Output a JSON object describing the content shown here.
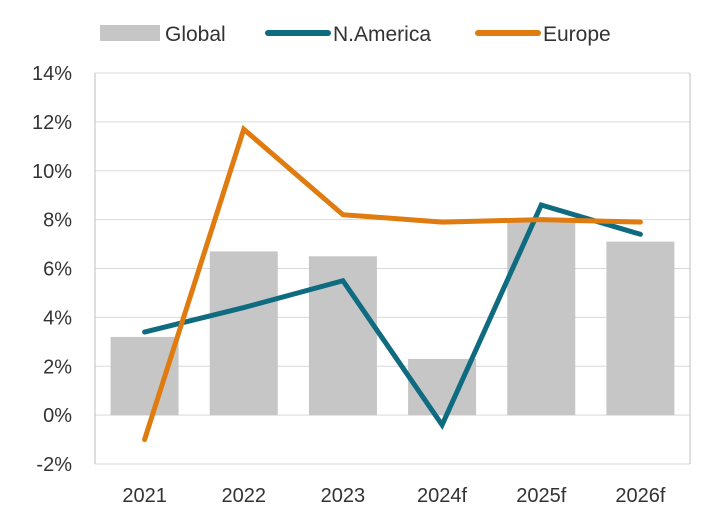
{
  "chart_data": {
    "type": "bar+line",
    "title": "",
    "xlabel": "",
    "ylabel": "",
    "categories": [
      "2021",
      "2022",
      "2023",
      "2024f",
      "2025f",
      "2026f"
    ],
    "ylim": [
      -2,
      14
    ],
    "yticks": [
      -2,
      0,
      2,
      4,
      6,
      8,
      10,
      12,
      14
    ],
    "y_tick_labels": [
      "-2%",
      "0%",
      "2%",
      "4%",
      "6%",
      "8%",
      "10%",
      "12%",
      "14%"
    ],
    "grid": true,
    "legend_position": "top",
    "series": [
      {
        "name": "Global",
        "kind": "bar",
        "color": "#c6c6c6",
        "values": [
          3.2,
          6.7,
          6.5,
          2.3,
          7.9,
          7.1
        ]
      },
      {
        "name": "N.America",
        "kind": "line",
        "color": "#0e6b80",
        "values": [
          3.4,
          4.4,
          5.5,
          -0.4,
          8.6,
          7.4
        ]
      },
      {
        "name": "Europe",
        "kind": "line",
        "color": "#e07b0f",
        "values": [
          -1.0,
          11.7,
          8.2,
          7.9,
          8.0,
          7.9
        ]
      }
    ]
  }
}
